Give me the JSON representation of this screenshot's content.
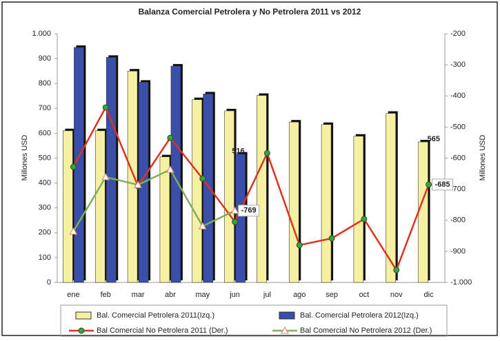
{
  "chart_data": {
    "type": "bar-line",
    "title": "Balanza Comercial Petrolera y No Petrolera 2011 vs 2012",
    "ylabel": "Millones USD",
    "y2label": "Millones USD",
    "categories": [
      "ene",
      "feb",
      "mar",
      "abr",
      "may",
      "jun",
      "jul",
      "ago",
      "sep",
      "oct",
      "nov",
      "dic"
    ],
    "ylim": [
      0,
      1000
    ],
    "yticks": [
      0,
      100,
      200,
      300,
      400,
      500,
      600,
      700,
      800,
      900,
      {
        "value": 1000,
        "label": "1.000"
      }
    ],
    "y2lim": [
      -1000,
      -200
    ],
    "y2ticks": [
      {
        "value": -1000,
        "label": "-1.000"
      },
      -900,
      -800,
      -700,
      -600,
      -500,
      -400,
      -300,
      -200
    ],
    "series": [
      {
        "name": "Bal. Comercial Petrolera 2011(Izq.)",
        "type": "bar",
        "color": "#f6f1a2",
        "values": [
          610,
          610,
          850,
          505,
          735,
          690,
          752,
          645,
          635,
          588,
          680,
          565
        ],
        "value_labels": [
          null,
          null,
          null,
          null,
          null,
          null,
          null,
          null,
          null,
          null,
          null,
          "565"
        ]
      },
      {
        "name": "Bal. Comercial Petrolera 2012(Izq.)",
        "type": "bar",
        "color": "#3a4faa",
        "values": [
          945,
          905,
          805,
          870,
          758,
          516,
          null,
          null,
          null,
          null,
          null,
          null
        ],
        "value_labels": [
          null,
          null,
          null,
          null,
          null,
          "516",
          null,
          null,
          null,
          null,
          null,
          null
        ]
      },
      {
        "name": "Bal Comercial No Petrolera 2011 (Der.)",
        "type": "line",
        "axis": "y2",
        "color": "#e0301e",
        "marker": "circle",
        "marker_color": "#3d9e42",
        "values": [
          -628,
          -437,
          -690,
          -535,
          -666,
          -805,
          -584,
          -880,
          -858,
          -796,
          -960,
          -685
        ],
        "value_labels": [
          null,
          null,
          null,
          null,
          null,
          null,
          null,
          null,
          null,
          null,
          null,
          "-685"
        ]
      },
      {
        "name": "Bal Comercial No Petrolera 2012 (Der.)",
        "type": "line",
        "axis": "y2",
        "color": "#7fae5a",
        "marker": "triangle",
        "marker_color": "#ffffff",
        "values": [
          -836,
          -661,
          -686,
          -637,
          -819,
          -769,
          null,
          null,
          null,
          null,
          null,
          null
        ],
        "value_labels": [
          null,
          null,
          null,
          null,
          null,
          "-769",
          null,
          null,
          null,
          null,
          null,
          null
        ]
      }
    ]
  }
}
